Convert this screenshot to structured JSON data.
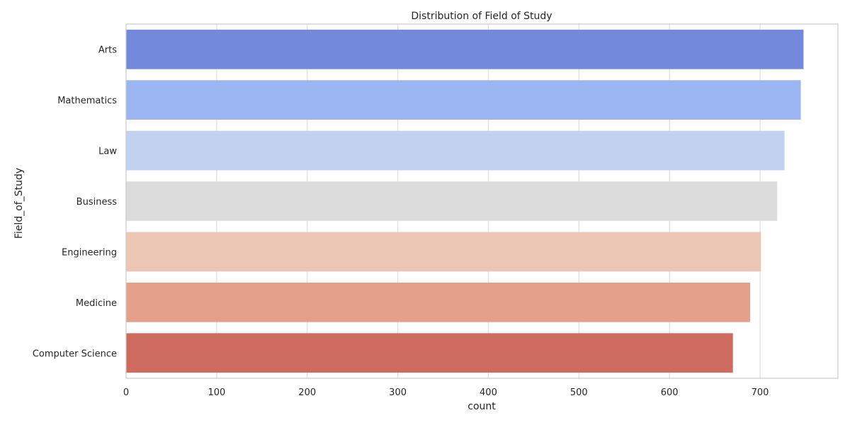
{
  "chart_data": {
    "type": "bar",
    "orientation": "horizontal",
    "title": "Distribution of Field of Study",
    "xlabel": "count",
    "ylabel": "Field_of_Study",
    "categories": [
      "Arts",
      "Mathematics",
      "Law",
      "Business",
      "Engineering",
      "Medicine",
      "Computer Science"
    ],
    "values": [
      748,
      745,
      727,
      719,
      701,
      689,
      670
    ],
    "colors": [
      "#7289dc",
      "#9ab5f1",
      "#c1d2f0",
      "#dcdcdc",
      "#ebc6b4",
      "#e4a088",
      "#ce6b5f"
    ],
    "x_ticks": [
      "0",
      "100",
      "200",
      "300",
      "400",
      "500",
      "600",
      "700"
    ],
    "xlim": [
      0,
      786
    ],
    "grid": true,
    "legend": false
  }
}
